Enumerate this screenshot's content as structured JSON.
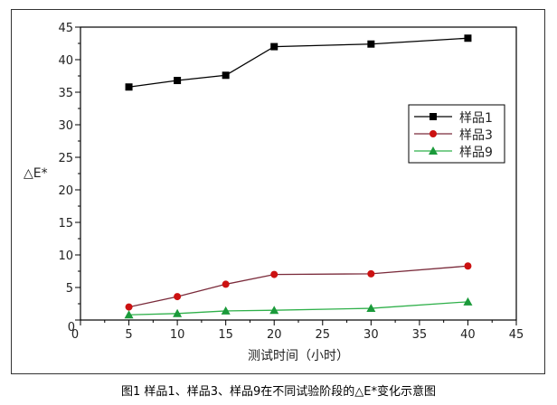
{
  "chart_data": {
    "type": "line",
    "title": "",
    "xlabel": "测试时间（小时）",
    "ylabel": "△E*",
    "xlim": [
      0,
      45
    ],
    "ylim": [
      0,
      45
    ],
    "xticks": [
      0,
      5,
      10,
      15,
      20,
      25,
      30,
      35,
      40,
      45
    ],
    "yticks": [
      0,
      5,
      10,
      15,
      20,
      25,
      30,
      35,
      40,
      45
    ],
    "grid": false,
    "legend_placement": "right",
    "x": [
      5,
      10,
      15,
      20,
      30,
      40
    ],
    "series": [
      {
        "name": "样品1",
        "values": [
          35.8,
          36.8,
          37.6,
          42.0,
          42.4,
          43.3
        ],
        "color": "#000000",
        "line_color": "#000000",
        "marker": "square"
      },
      {
        "name": "样品3",
        "values": [
          2.0,
          3.6,
          5.5,
          7.0,
          7.1,
          8.3
        ],
        "color": "#cc1111",
        "line_color": "#7a2a3a",
        "marker": "circle"
      },
      {
        "name": "样品9",
        "values": [
          0.8,
          1.0,
          1.4,
          1.5,
          1.8,
          2.8
        ],
        "color": "#1a9a3a",
        "line_color": "#2fb04a",
        "marker": "triangle"
      }
    ]
  },
  "caption": "图1 样品1、样品3、样品9在不同试验阶段的△E*变化示意图"
}
